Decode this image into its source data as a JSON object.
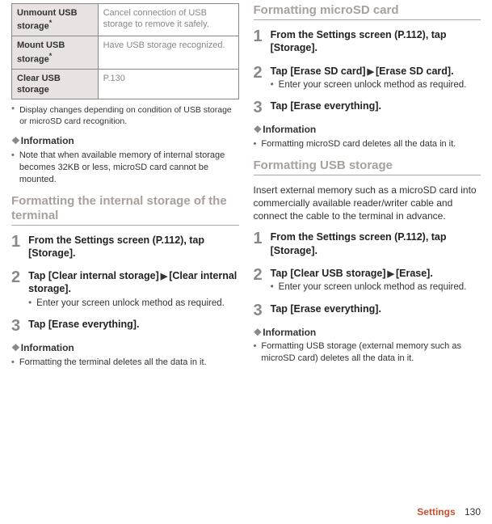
{
  "left": {
    "table": {
      "rows": [
        {
          "label": "Unmount USB storage",
          "star": true,
          "desc": "Cancel connection of USB storage to remove it safely."
        },
        {
          "label": "Mount USB storage",
          "star": true,
          "desc": "Have USB storage recognized."
        },
        {
          "label": "Clear USB storage",
          "star": false,
          "desc": "P.130"
        }
      ]
    },
    "footnote": "Display changes depending on condition of USB storage or microSD card recognition.",
    "info1_header": "Information",
    "info1_bullet": "Note that when available memory of internal storage becomes 32KB or less, microSD card cannot be mounted.",
    "section1_title": "Formatting the internal storage of the terminal",
    "step1": "From the Settings screen (P.112), tap [Storage].",
    "step2a": "Tap [Clear internal storage]",
    "step2b": "[Clear internal storage].",
    "step2_sub": "Enter your screen unlock method as required.",
    "step3": "Tap [Erase everything].",
    "info2_header": "Information",
    "info2_bullet": "Formatting the terminal deletes all the data in it."
  },
  "right": {
    "section1_title": "Formatting microSD card",
    "r1_step1": "From the Settings screen (P.112), tap [Storage].",
    "r1_step2a": "Tap [Erase SD card]",
    "r1_step2b": "[Erase SD card].",
    "r1_step2_sub": "Enter your screen unlock method as required.",
    "r1_step3": "Tap [Erase everything].",
    "info1_header": "Information",
    "info1_bullet": "Formatting microSD card deletes all the data in it.",
    "section2_title": "Formatting USB storage",
    "section2_body": "Insert external memory such as a microSD card into commercially available reader/writer cable and connect the cable to the terminal in advance.",
    "r2_step1": "From the Settings screen (P.112), tap [Storage].",
    "r2_step2a": "Tap [Clear USB storage]",
    "r2_step2b": "[Erase].",
    "r2_step2_sub": "Enter your screen unlock method as required.",
    "r2_step3": "Tap [Erase everything].",
    "info2_header": "Information",
    "info2_bullet": "Formatting USB storage (external memory such as microSD card) deletes all the data in it."
  },
  "footer": {
    "section": "Settings",
    "page": "130"
  }
}
